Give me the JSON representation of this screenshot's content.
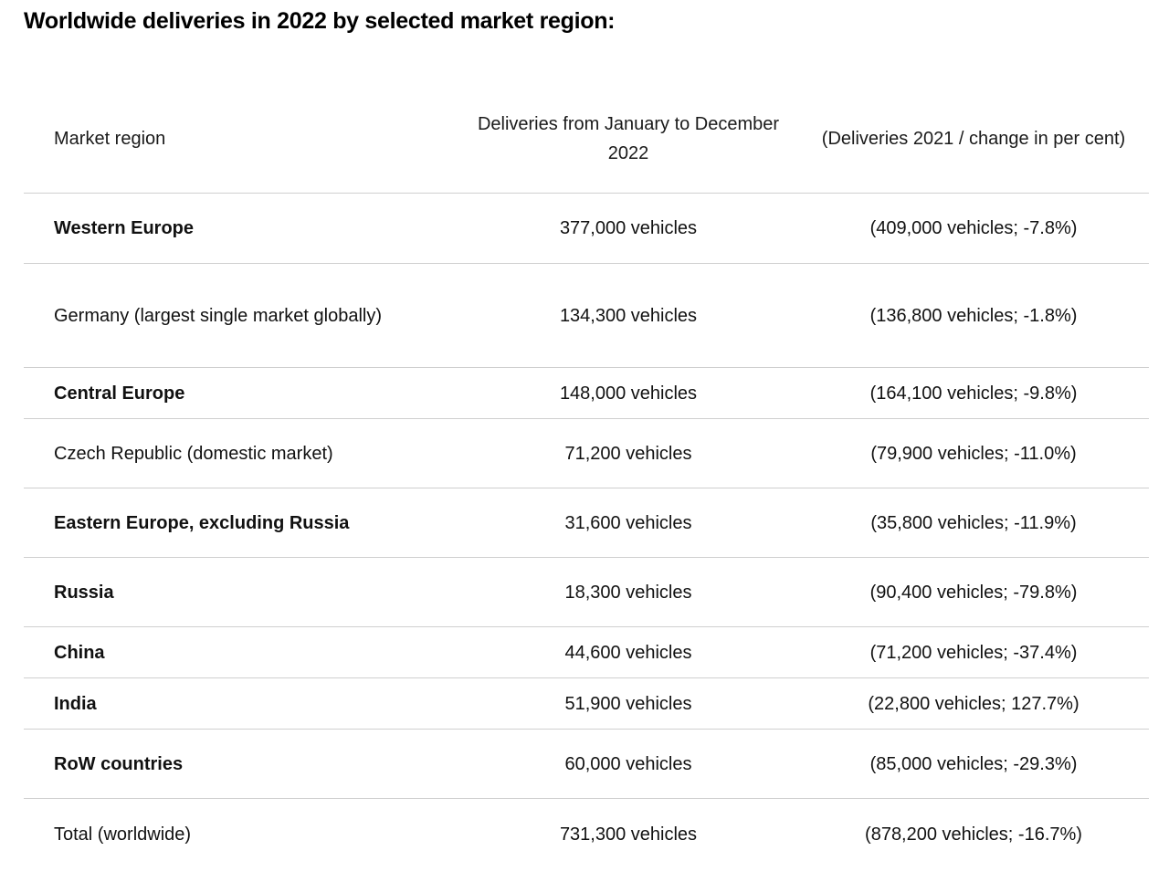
{
  "title": "Worldwide deliveries in 2022 by selected market region:",
  "headers": {
    "region": "Market region",
    "deliveries_2022": "Deliveries from January to December 2022",
    "deliveries_2021": "(Deliveries 2021 / change in per cent)"
  },
  "rows": [
    {
      "region": "Western Europe",
      "deliveries_2022": "377,000 vehicles",
      "deliveries_2021": "(409,000 vehicles; -7.8%)",
      "bold": true
    },
    {
      "region": "Germany (largest single market globally)",
      "deliveries_2022": "134,300 vehicles",
      "deliveries_2021": "(136,800 vehicles; -1.8%)",
      "bold": false
    },
    {
      "region": "Central Europe",
      "deliveries_2022": "148,000 vehicles",
      "deliveries_2021": "(164,100 vehicles; -9.8%)",
      "bold": true
    },
    {
      "region": "Czech Republic (domestic market)",
      "deliveries_2022": "71,200 vehicles",
      "deliveries_2021": "(79,900 vehicles; -11.0%)",
      "bold": false
    },
    {
      "region": "Eastern Europe, excluding Russia",
      "deliveries_2022": "31,600 vehicles",
      "deliveries_2021": "(35,800 vehicles; -11.9%)",
      "bold": true
    },
    {
      "region": "Russia",
      "deliveries_2022": "18,300 vehicles",
      "deliveries_2021": "(90,400 vehicles; -79.8%)",
      "bold": true
    },
    {
      "region": "China",
      "deliveries_2022": "44,600 vehicles",
      "deliveries_2021": "(71,200 vehicles; -37.4%)",
      "bold": true
    },
    {
      "region": "India",
      "deliveries_2022": "51,900 vehicles",
      "deliveries_2021": "(22,800 vehicles; 127.7%)",
      "bold": true
    },
    {
      "region": "RoW countries",
      "deliveries_2022": "60,000 vehicles",
      "deliveries_2021": "(85,000 vehicles; -29.3%)",
      "bold": true
    },
    {
      "region": "Total (worldwide)",
      "deliveries_2022": "731,300 vehicles",
      "deliveries_2021": "(878,200 vehicles; -16.7%)",
      "bold": false
    }
  ]
}
